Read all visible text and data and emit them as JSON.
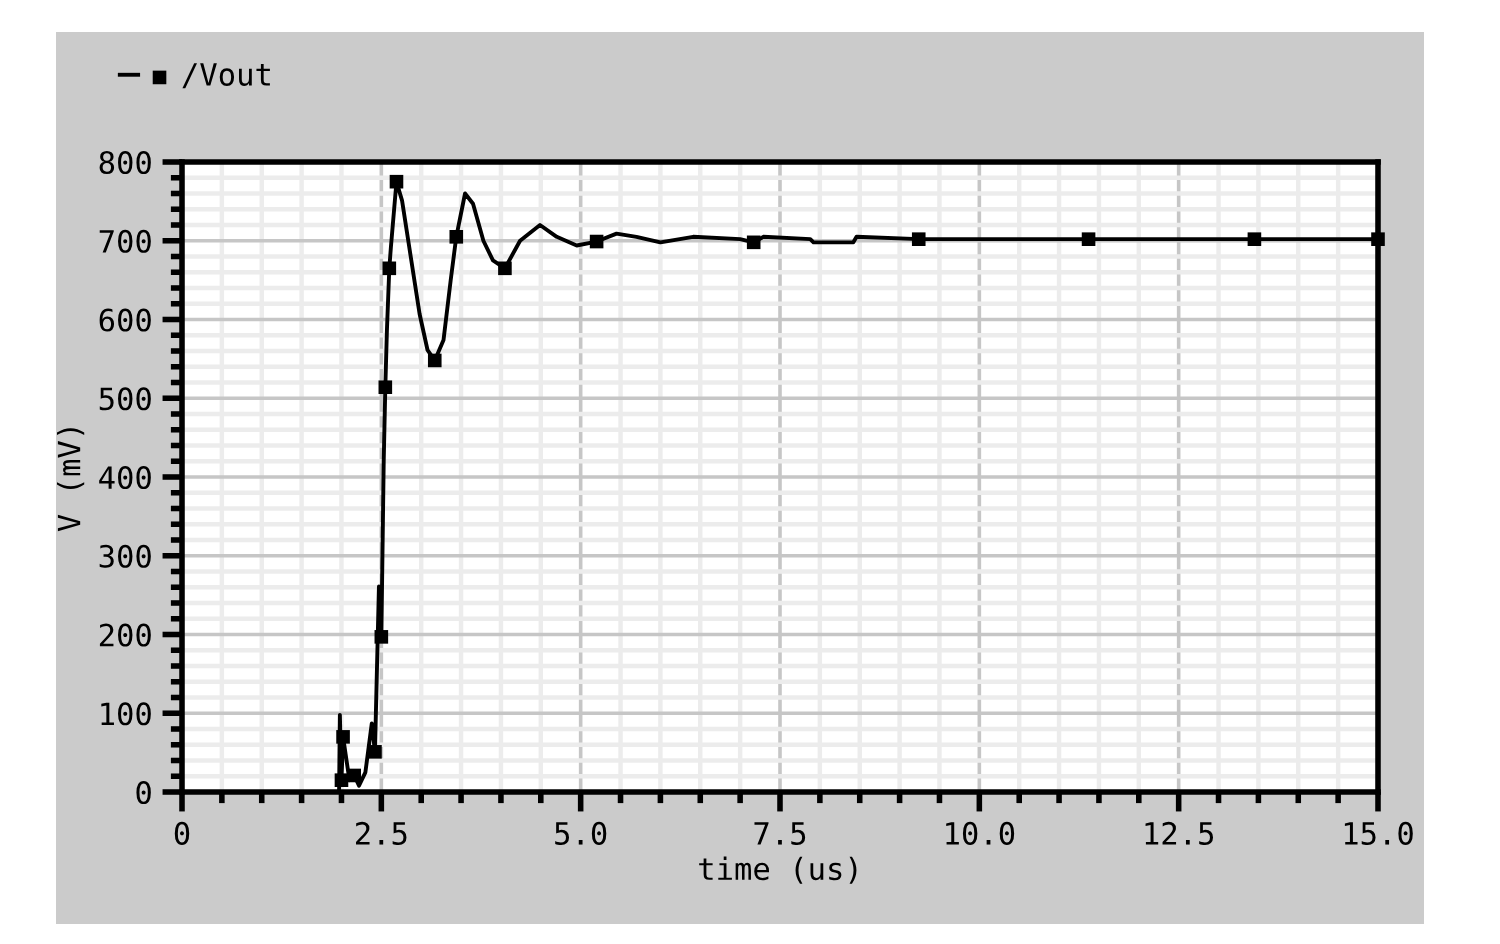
{
  "chart_data": {
    "type": "line",
    "xlabel": "time (us)",
    "ylabel": "V (mV)",
    "xlim": [
      0,
      15
    ],
    "ylim": [
      0,
      800
    ],
    "xticks": [
      0,
      2.5,
      {
        "value": 5,
        "label": "5.0"
      },
      7.5,
      {
        "value": 10,
        "label": "10.0"
      },
      12.5,
      {
        "value": 15,
        "label": "15.0"
      }
    ],
    "yticks": [
      0,
      100,
      200,
      300,
      400,
      500,
      600,
      700,
      800
    ],
    "grid": true,
    "legend": "top left",
    "series": [
      {
        "name": "/Vout",
        "color": "#000000",
        "marker": "none",
        "x": [
          0,
          1.97,
          1.98,
          2.0,
          2.02,
          2.1,
          2.16,
          2.22,
          2.3,
          2.38,
          2.42,
          2.47,
          2.5,
          2.52,
          2.53,
          2.55,
          2.57,
          2.6,
          2.62,
          2.69,
          2.76,
          2.85,
          2.98,
          3.08,
          3.17,
          3.28,
          3.37,
          3.44,
          3.55,
          3.65,
          3.78,
          3.9,
          4.05,
          4.24,
          4.49,
          4.7,
          4.95,
          5.2,
          5.45,
          5.7,
          6.0,
          6.41,
          7.0,
          7.17,
          7.29,
          7.88,
          7.92,
          8.42,
          8.46,
          9.24,
          11.37,
          13.45,
          15.0
        ],
        "values": [
          0,
          0,
          98,
          15,
          70,
          15,
          21,
          8,
          25,
          87,
          51,
          261,
          197,
          345,
          421,
          514,
          586,
          665,
          692,
          775,
          751,
          692,
          607,
          561,
          548,
          574,
          650,
          705,
          760,
          747,
          700,
          675,
          665,
          700,
          720,
          705,
          694,
          699,
          709,
          705,
          698,
          705,
          702,
          698,
          705,
          702,
          698,
          698,
          705,
          702,
          702,
          702,
          702
        ]
      },
      {
        "type": "scatter",
        "color": "#000000",
        "marker": "square",
        "x": [
          2.0,
          2.02,
          2.16,
          2.42,
          2.5,
          2.55,
          2.6,
          2.69,
          3.17,
          3.44,
          4.05,
          5.2,
          7.17,
          9.24,
          11.37,
          13.45,
          15.0
        ],
        "values": [
          15,
          70,
          21,
          51,
          197,
          514,
          665,
          775,
          548,
          705,
          665,
          699,
          698,
          702,
          702,
          702,
          702
        ]
      }
    ]
  }
}
